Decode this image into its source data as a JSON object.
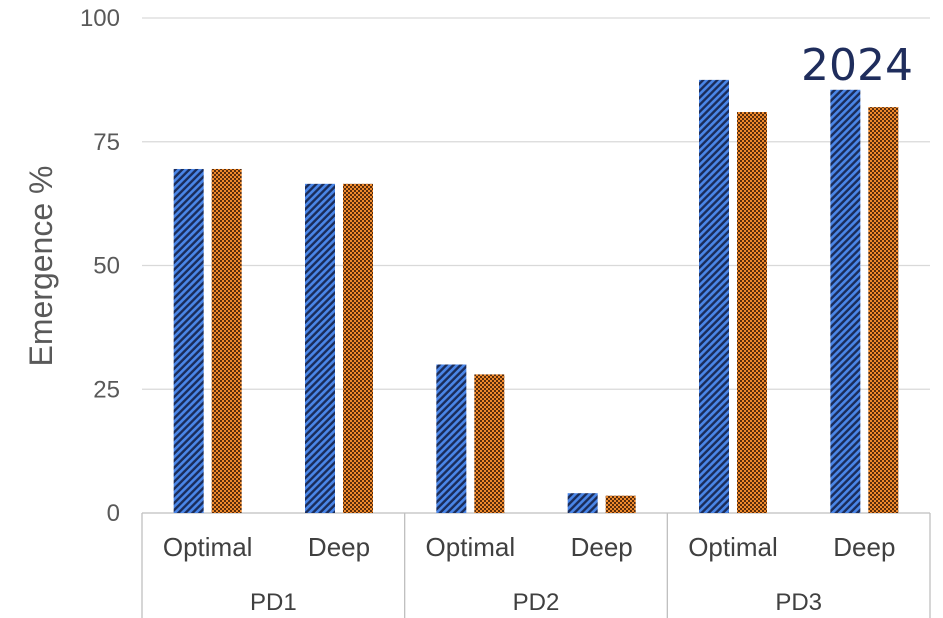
{
  "chart_data": {
    "type": "bar",
    "title": "2024",
    "xlabel": "",
    "ylabel": "Emergence %",
    "ylim": [
      0,
      100
    ],
    "yticks": [
      0,
      25,
      50,
      75,
      100
    ],
    "grid": true,
    "legend": "none",
    "groups": [
      {
        "label": "PD1",
        "categories": [
          "Optimal",
          "Deep"
        ]
      },
      {
        "label": "PD2",
        "categories": [
          "Optimal",
          "Deep"
        ]
      },
      {
        "label": "PD3",
        "categories": [
          "Optimal",
          "Deep"
        ]
      }
    ],
    "series": [
      {
        "color": "#3b73d9",
        "pattern": "diagonal-stripes",
        "values": [
          69.5,
          66.5,
          30,
          4,
          87.5,
          85.5
        ]
      },
      {
        "color": "#e07020",
        "pattern": "dotted-grid",
        "values": [
          69.5,
          66.5,
          28,
          3.5,
          81,
          82
        ]
      }
    ]
  }
}
